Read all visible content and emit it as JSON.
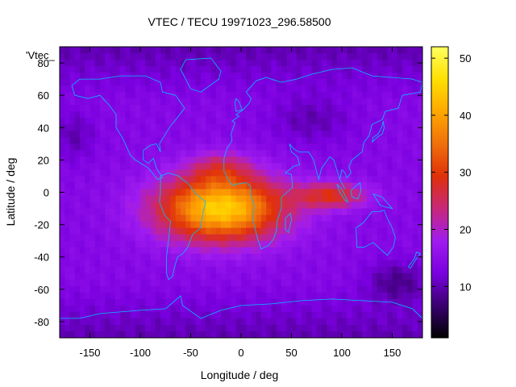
{
  "chart_data": {
    "type": "heatmap",
    "title": "VTEC / TECU 19971023_296.58500",
    "xlabel": "Longitude / deg",
    "ylabel": "Latitude / deg",
    "xlim": [
      -180,
      180
    ],
    "ylim": [
      -90,
      90
    ],
    "x_ticks": [
      -150,
      -100,
      -50,
      0,
      50,
      100,
      150
    ],
    "y_ticks": [
      -80,
      -60,
      -40,
      -20,
      0,
      20,
      40,
      60,
      80
    ],
    "colorbar": {
      "range": [
        1,
        52
      ],
      "ticks": [
        10,
        20,
        30,
        40,
        50
      ],
      "palette": [
        "#000000",
        "#3a0070",
        "#7a00e0",
        "#a01cf0",
        "#c82878",
        "#e0300a",
        "#f0700a",
        "#ffa800",
        "#ffe000",
        "#ffff60"
      ]
    },
    "legend_label": "'Vtec_",
    "overlay": "continent outlines",
    "overlay_color": "#00c0ff",
    "features": {
      "background_min": 6,
      "background_typical": 14,
      "peak": 45,
      "peak_center_lon": -20,
      "peak_center_lat": -10,
      "enhanced_region_lon": [
        -120,
        120
      ],
      "enhanced_region_lat": [
        -40,
        28
      ]
    }
  }
}
